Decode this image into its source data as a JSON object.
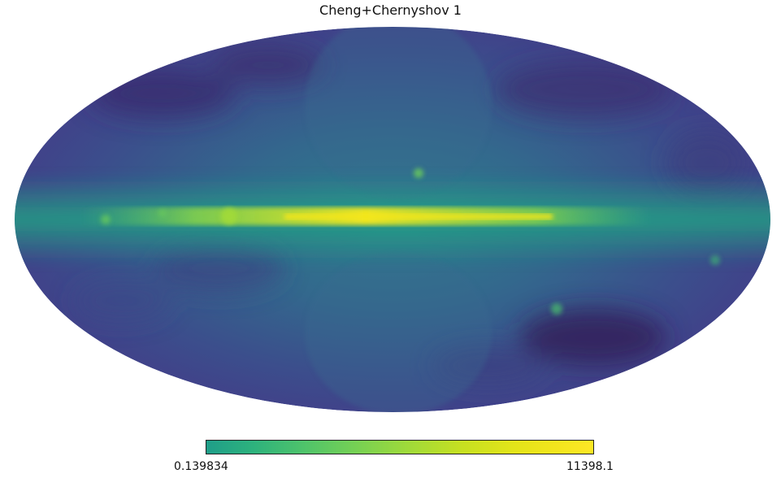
{
  "title": "Cheng+Chernyshov 1",
  "colorbar": {
    "min_label": "0.139834",
    "max_label": "11398.1",
    "colormap": "viridis"
  },
  "map": {
    "projection": "mollweide",
    "colors": {
      "background_dark": "#3b4f8c",
      "mid": "#2e6f8e",
      "plane": "#26918d",
      "bright": "#fde725",
      "dark_patch": "#33245e"
    }
  }
}
